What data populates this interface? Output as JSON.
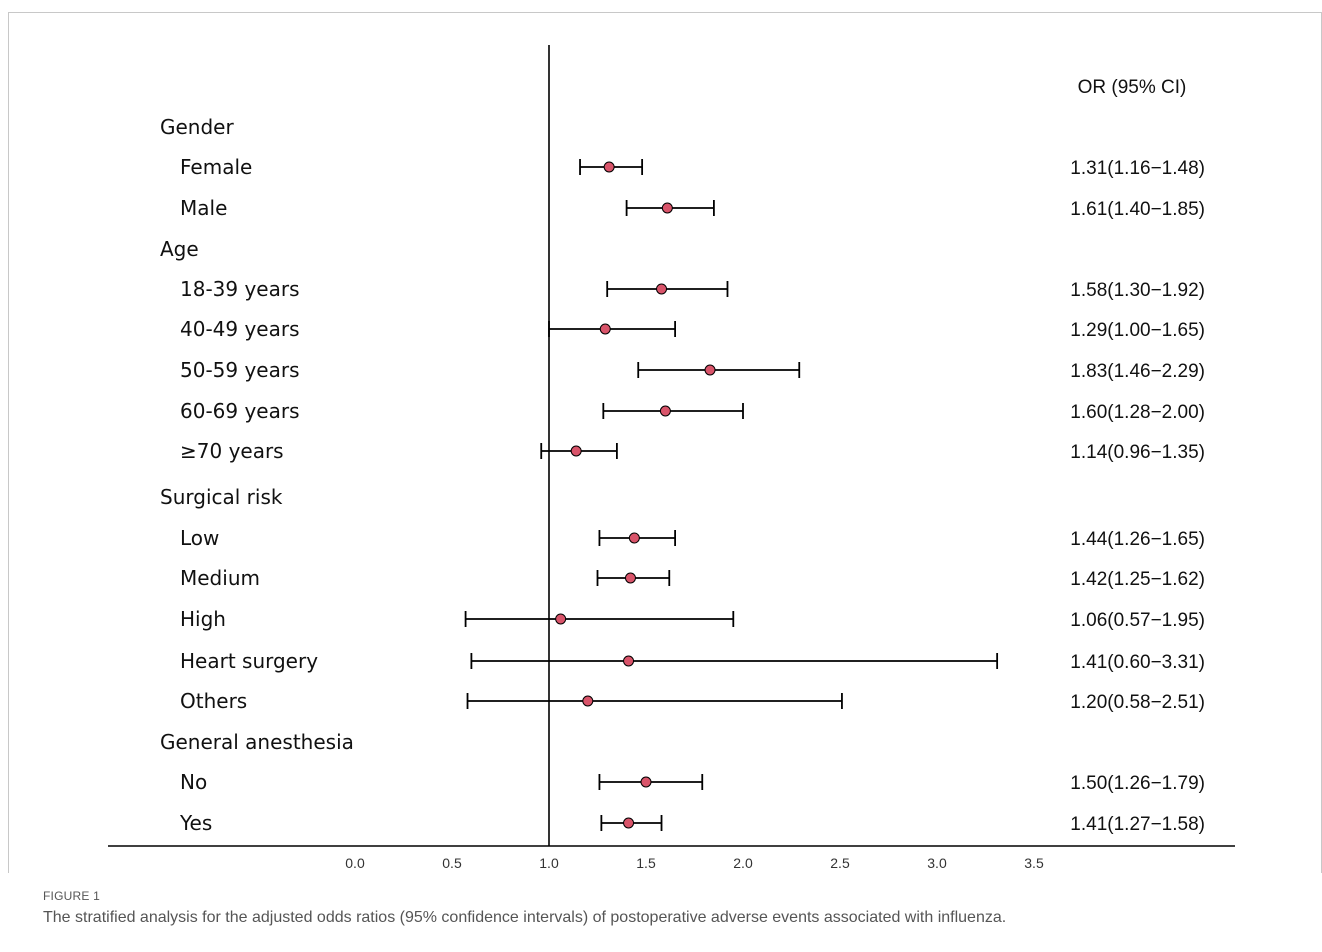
{
  "figure": {
    "label": "FIGURE 1",
    "caption": "The stratified analysis for the adjusted odds ratios (95% confidence intervals) of postoperative adverse events associated with influenza."
  },
  "chart_data": {
    "type": "forest",
    "column_header": "OR (95% CI)",
    "reference_line": 1.0,
    "xlim": [
      0.0,
      3.5
    ],
    "x_ticks": [
      "0.0",
      "0.5",
      "1.0",
      "1.5",
      "2.0",
      "2.5",
      "3.0",
      "3.5"
    ],
    "marker_color": "#d9546a",
    "rows": [
      {
        "label": "Gender",
        "group": true
      },
      {
        "label": "Female",
        "or": 1.31,
        "lo": 1.16,
        "hi": 1.48,
        "text": "1.31(1.16−1.48)"
      },
      {
        "label": "Male",
        "or": 1.61,
        "lo": 1.4,
        "hi": 1.85,
        "text": "1.61(1.40−1.85)"
      },
      {
        "label": "Age",
        "group": true
      },
      {
        "label": "18-39 years",
        "or": 1.58,
        "lo": 1.3,
        "hi": 1.92,
        "text": "1.58(1.30−1.92)"
      },
      {
        "label": "40-49 years",
        "or": 1.29,
        "lo": 1.0,
        "hi": 1.65,
        "text": "1.29(1.00−1.65)"
      },
      {
        "label": "50-59 years",
        "or": 1.83,
        "lo": 1.46,
        "hi": 2.29,
        "text": "1.83(1.46−2.29)"
      },
      {
        "label": "60-69 years",
        "or": 1.6,
        "lo": 1.28,
        "hi": 2.0,
        "text": "1.60(1.28−2.00)"
      },
      {
        "label": "≥70 years",
        "or": 1.14,
        "lo": 0.96,
        "hi": 1.35,
        "text": "1.14(0.96−1.35)"
      },
      {
        "label": "Surgical risk",
        "group": true
      },
      {
        "label": "Low",
        "or": 1.44,
        "lo": 1.26,
        "hi": 1.65,
        "text": "1.44(1.26−1.65)"
      },
      {
        "label": "Medium",
        "or": 1.42,
        "lo": 1.25,
        "hi": 1.62,
        "text": "1.42(1.25−1.62)"
      },
      {
        "label": "High",
        "or": 1.06,
        "lo": 0.57,
        "hi": 1.95,
        "text": "1.06(0.57−1.95)"
      },
      {
        "label": "Heart surgery",
        "or": 1.41,
        "lo": 0.6,
        "hi": 3.31,
        "text": "1.41(0.60−3.31)"
      },
      {
        "label": "Others",
        "or": 1.2,
        "lo": 0.58,
        "hi": 2.51,
        "text": "1.20(0.58−2.51)"
      },
      {
        "label": "General anesthesia",
        "group": true
      },
      {
        "label": "No",
        "or": 1.5,
        "lo": 1.26,
        "hi": 1.79,
        "text": "1.50(1.26−1.79)"
      },
      {
        "label": "Yes",
        "or": 1.41,
        "lo": 1.27,
        "hi": 1.58,
        "text": "1.41(1.27−1.58)"
      }
    ]
  }
}
